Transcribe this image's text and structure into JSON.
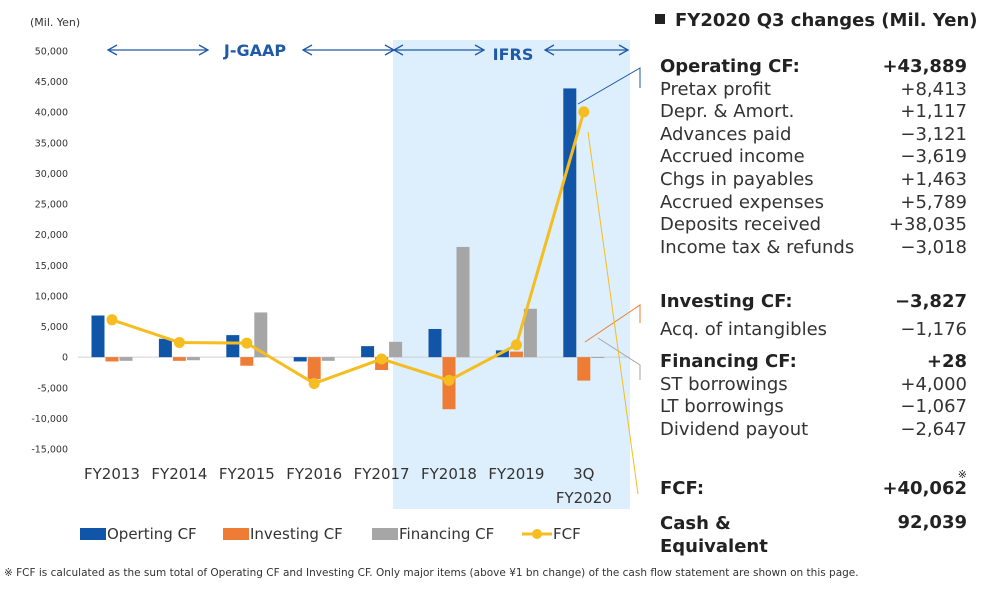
{
  "chart_data": {
    "type": "bar+line",
    "unit_label": "(Mil. Yen)",
    "categories": [
      "FY2013",
      "FY2014",
      "FY2015",
      "FY2016",
      "FY2017",
      "FY2018",
      "FY2019",
      "3Q FY2020"
    ],
    "category_lines": [
      [
        "FY2013"
      ],
      [
        "FY2014"
      ],
      [
        "FY2015"
      ],
      [
        "FY2016"
      ],
      [
        "FY2017"
      ],
      [
        "FY2018"
      ],
      [
        "FY2019"
      ],
      [
        "3Q",
        "FY2020"
      ]
    ],
    "series": [
      {
        "name": "Operting CF",
        "type": "bar",
        "color": "#1155a8",
        "values": [
          6800,
          3000,
          3600,
          -700,
          1800,
          4600,
          1100,
          43889
        ]
      },
      {
        "name": "Investing CF",
        "type": "bar",
        "color": "#ef7c34",
        "values": [
          -700,
          -600,
          -1400,
          -3600,
          -2100,
          -8500,
          900,
          -3827
        ]
      },
      {
        "name": "Financing CF",
        "type": "bar",
        "color": "#a6a6a6",
        "values": [
          -600,
          -500,
          7300,
          -600,
          2500,
          18000,
          7900,
          28
        ]
      },
      {
        "name": "FCF",
        "type": "line",
        "color": "#f5bd1f",
        "values": [
          6100,
          2400,
          2300,
          -4300,
          -300,
          -3800,
          2000,
          40062
        ]
      }
    ],
    "y_ticks": [
      "50,000",
      "45,000",
      "40,000",
      "35,000",
      "30,000",
      "25,000",
      "20,000",
      "15,000",
      "10,000",
      "5,000",
      "0",
      "-5,000",
      "-10,000",
      "-15,000"
    ],
    "ylim": [
      -15000,
      50000
    ],
    "eras": {
      "jgaap": "J-GAAP",
      "ifrs": "IFRS"
    },
    "ifrs_shade_color": "#ddeefc"
  },
  "panel": {
    "title": "FY2020 Q3 changes  (Mil. Yen)",
    "operating": {
      "label": "Operating CF:",
      "value": "+43,889",
      "items": [
        {
          "label": "Pretax profit",
          "value": "+8,413"
        },
        {
          "label": "Depr. & Amort.",
          "value": "+1,117"
        },
        {
          "label": "Advances paid",
          "value": "−3,121"
        },
        {
          "label": "Accrued income",
          "value": "−3,619"
        },
        {
          "label": "Chgs in payables",
          "value": "+1,463"
        },
        {
          "label": "Accrued expenses",
          "value": "+5,789"
        },
        {
          "label": "Deposits received",
          "value": "+38,035"
        },
        {
          "label": "Income tax & refunds",
          "value": "−3,018"
        }
      ]
    },
    "investing": {
      "label": "Investing CF:",
      "value": "−3,827",
      "items": [
        {
          "label": "Acq. of intangibles",
          "value": "−1,176"
        }
      ]
    },
    "financing": {
      "label": "Financing CF:",
      "value": "+28",
      "items": [
        {
          "label": "ST borrowings",
          "value": "+4,000"
        },
        {
          "label": "LT borrowings",
          "value": "−1,067"
        },
        {
          "label": "Dividend payout",
          "value": "−2,647"
        }
      ]
    },
    "fcf": {
      "label": "FCF:",
      "value": "+40,062",
      "mark": "※"
    },
    "cash": {
      "label": "Cash &\nEquivalent",
      "value": "92,039"
    }
  },
  "footnote": "※ FCF is calculated as the sum total of Operating CF and Investing CF. Only major items (above ¥1 bn change) of the cash flow statement are shown on this page."
}
